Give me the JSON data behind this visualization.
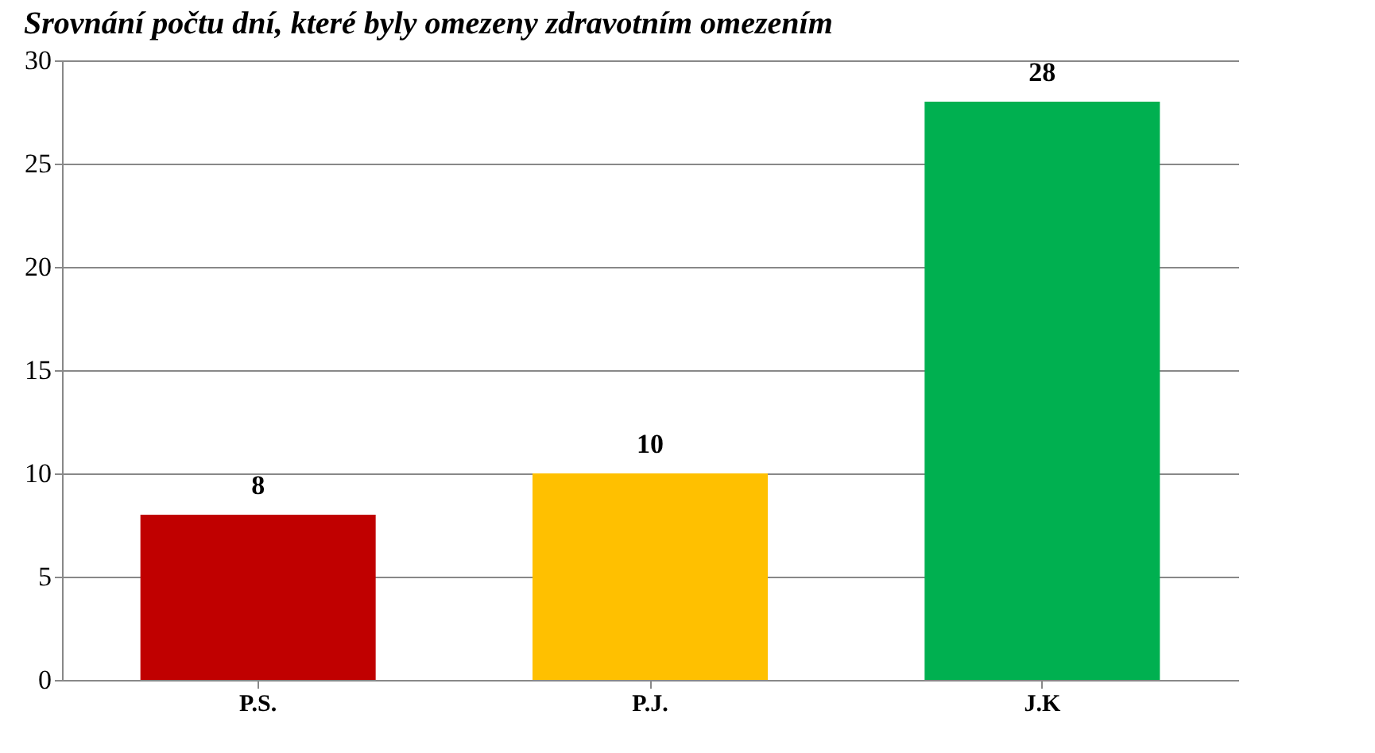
{
  "chart_data": {
    "type": "bar",
    "title": "Srovnání počtu dní, které byly omezeny zdravotním omezením",
    "categories": [
      "P.S.",
      "P.J.",
      "J.K"
    ],
    "values": [
      8,
      10,
      28
    ],
    "colors": [
      "#c00000",
      "#ffc000",
      "#00b050"
    ],
    "ylim": [
      0,
      30
    ],
    "yticks": [
      0,
      5,
      10,
      15,
      20,
      25,
      30
    ],
    "grid": "y",
    "data_labels": true
  }
}
